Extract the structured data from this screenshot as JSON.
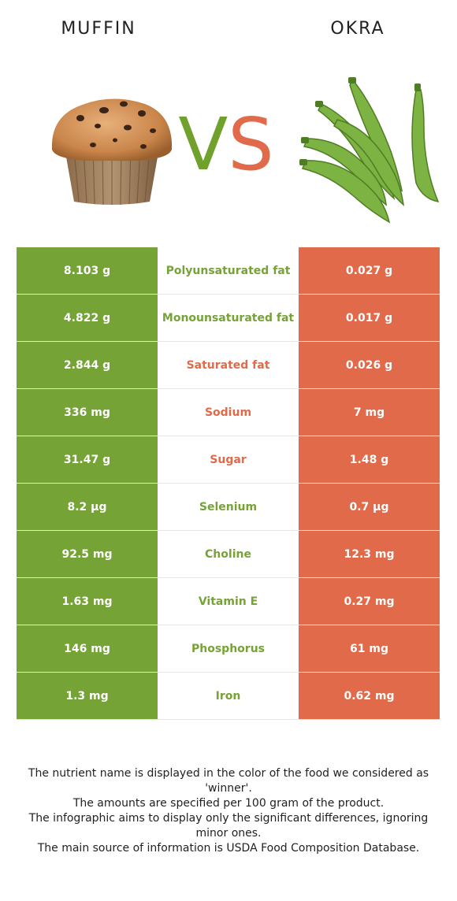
{
  "header": {
    "left_title": "MUFFIN",
    "right_title": "OKRA",
    "vs_v": "V",
    "vs_s": "S"
  },
  "colors": {
    "winner_left": "#76a335",
    "winner_right": "#e06a4a"
  },
  "rows": [
    {
      "left": "8.103 g",
      "name": "Polyunsaturated fat",
      "right": "0.027 g",
      "name_color": "#76a335"
    },
    {
      "left": "4.822 g",
      "name": "Monounsaturated fat",
      "right": "0.017 g",
      "name_color": "#76a335"
    },
    {
      "left": "2.844 g",
      "name": "Saturated fat",
      "right": "0.026 g",
      "name_color": "#e06a4a"
    },
    {
      "left": "336 mg",
      "name": "Sodium",
      "right": "7 mg",
      "name_color": "#e06a4a"
    },
    {
      "left": "31.47 g",
      "name": "Sugar",
      "right": "1.48 g",
      "name_color": "#e06a4a"
    },
    {
      "left": "8.2 µg",
      "name": "Selenium",
      "right": "0.7 µg",
      "name_color": "#76a335"
    },
    {
      "left": "92.5 mg",
      "name": "Choline",
      "right": "12.3 mg",
      "name_color": "#76a335"
    },
    {
      "left": "1.63 mg",
      "name": "Vitamin E",
      "right": "0.27 mg",
      "name_color": "#76a335"
    },
    {
      "left": "146 mg",
      "name": "Phosphorus",
      "right": "61 mg",
      "name_color": "#76a335"
    },
    {
      "left": "1.3 mg",
      "name": "Iron",
      "right": "0.62 mg",
      "name_color": "#76a335"
    }
  ],
  "footer": {
    "line1": "The nutrient name is displayed in the color of the food we considered as 'winner'.",
    "line2": "The amounts are specified per 100 gram of the product.",
    "line3": "The infographic aims to display only the significant differences, ignoring minor ones.",
    "line4": "The main source of information is USDA Food Composition Database."
  }
}
